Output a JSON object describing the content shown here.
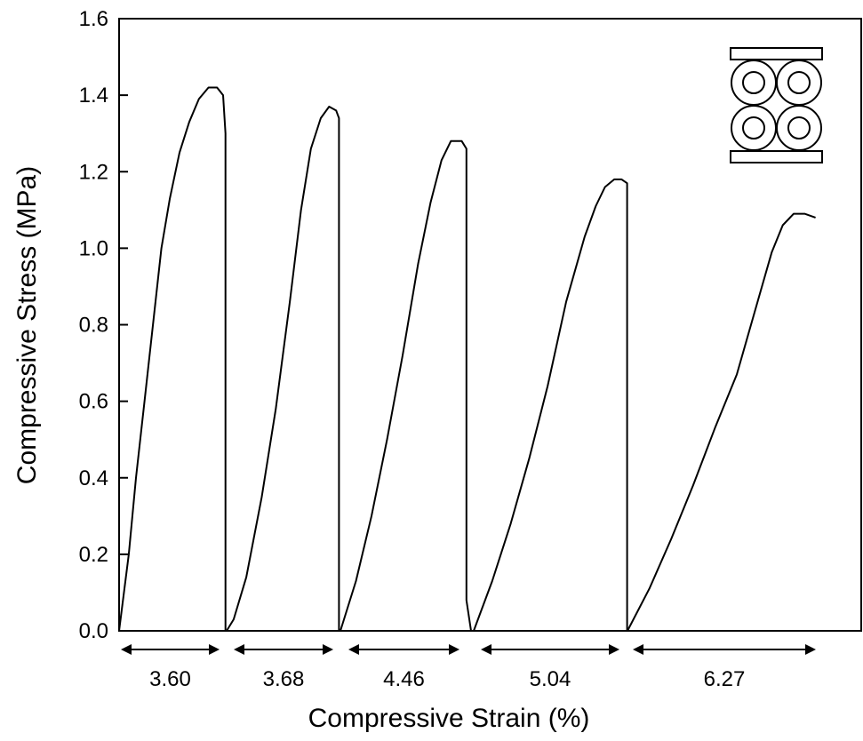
{
  "chart_data": {
    "type": "line",
    "title": "",
    "xlabel": "Compressive Strain (%)",
    "ylabel": "Compressive Stress (MPa)",
    "ylim": [
      0,
      1.6
    ],
    "yticks": [
      "0.0",
      "0.2",
      "0.4",
      "0.6",
      "0.8",
      "1.0",
      "1.2",
      "1.4",
      "1.6"
    ],
    "grid": false,
    "legend": "none",
    "inset": "schematic of four stacked hollow tubes (2x2) compressed between two plates",
    "line_color": "#000000",
    "series": [
      {
        "strain_range": 3.6,
        "label": "3.60",
        "points": [
          [
            0,
            0
          ],
          [
            0.08,
            0.2
          ],
          [
            0.14,
            0.4
          ],
          [
            0.21,
            0.6
          ],
          [
            0.28,
            0.8
          ],
          [
            0.35,
            1.0
          ],
          [
            0.42,
            1.13
          ],
          [
            0.5,
            1.25
          ],
          [
            0.58,
            1.33
          ],
          [
            0.66,
            1.39
          ],
          [
            0.74,
            1.42
          ],
          [
            0.81,
            1.42
          ],
          [
            0.86,
            1.4
          ],
          [
            0.88,
            1.3
          ],
          [
            0.88,
            0
          ]
        ]
      },
      {
        "strain_range": 3.68,
        "label": "3.68",
        "points": [
          [
            0,
            0
          ],
          [
            0.05,
            0.03
          ],
          [
            0.14,
            0.14
          ],
          [
            0.25,
            0.35
          ],
          [
            0.35,
            0.58
          ],
          [
            0.45,
            0.86
          ],
          [
            0.53,
            1.1
          ],
          [
            0.6,
            1.26
          ],
          [
            0.67,
            1.34
          ],
          [
            0.73,
            1.37
          ],
          [
            0.78,
            1.36
          ],
          [
            0.8,
            1.34
          ],
          [
            0.8,
            0
          ]
        ]
      },
      {
        "strain_range": 4.46,
        "label": "4.46",
        "points": [
          [
            0,
            0
          ],
          [
            0.1,
            0.13
          ],
          [
            0.2,
            0.3
          ],
          [
            0.3,
            0.5
          ],
          [
            0.4,
            0.72
          ],
          [
            0.5,
            0.96
          ],
          [
            0.58,
            1.12
          ],
          [
            0.65,
            1.23
          ],
          [
            0.71,
            1.28
          ],
          [
            0.78,
            1.28
          ],
          [
            0.81,
            1.26
          ],
          [
            0.81,
            0.08
          ],
          [
            0.84,
            0
          ]
        ]
      },
      {
        "strain_range": 5.04,
        "label": "5.04",
        "points": [
          [
            0,
            0
          ],
          [
            0.1,
            0.13
          ],
          [
            0.2,
            0.28
          ],
          [
            0.3,
            0.45
          ],
          [
            0.4,
            0.64
          ],
          [
            0.5,
            0.86
          ],
          [
            0.6,
            1.03
          ],
          [
            0.66,
            1.11
          ],
          [
            0.71,
            1.16
          ],
          [
            0.76,
            1.18
          ],
          [
            0.8,
            1.18
          ],
          [
            0.83,
            1.17
          ],
          [
            0.83,
            0
          ]
        ]
      },
      {
        "strain_range": 6.27,
        "label": "6.27",
        "points": [
          [
            0,
            0
          ],
          [
            0.1,
            0.11
          ],
          [
            0.2,
            0.24
          ],
          [
            0.3,
            0.38
          ],
          [
            0.4,
            0.53
          ],
          [
            0.5,
            0.67
          ],
          [
            0.6,
            0.87
          ],
          [
            0.66,
            0.99
          ],
          [
            0.71,
            1.06
          ],
          [
            0.76,
            1.09
          ],
          [
            0.81,
            1.09
          ],
          [
            0.86,
            1.08
          ]
        ]
      }
    ]
  }
}
